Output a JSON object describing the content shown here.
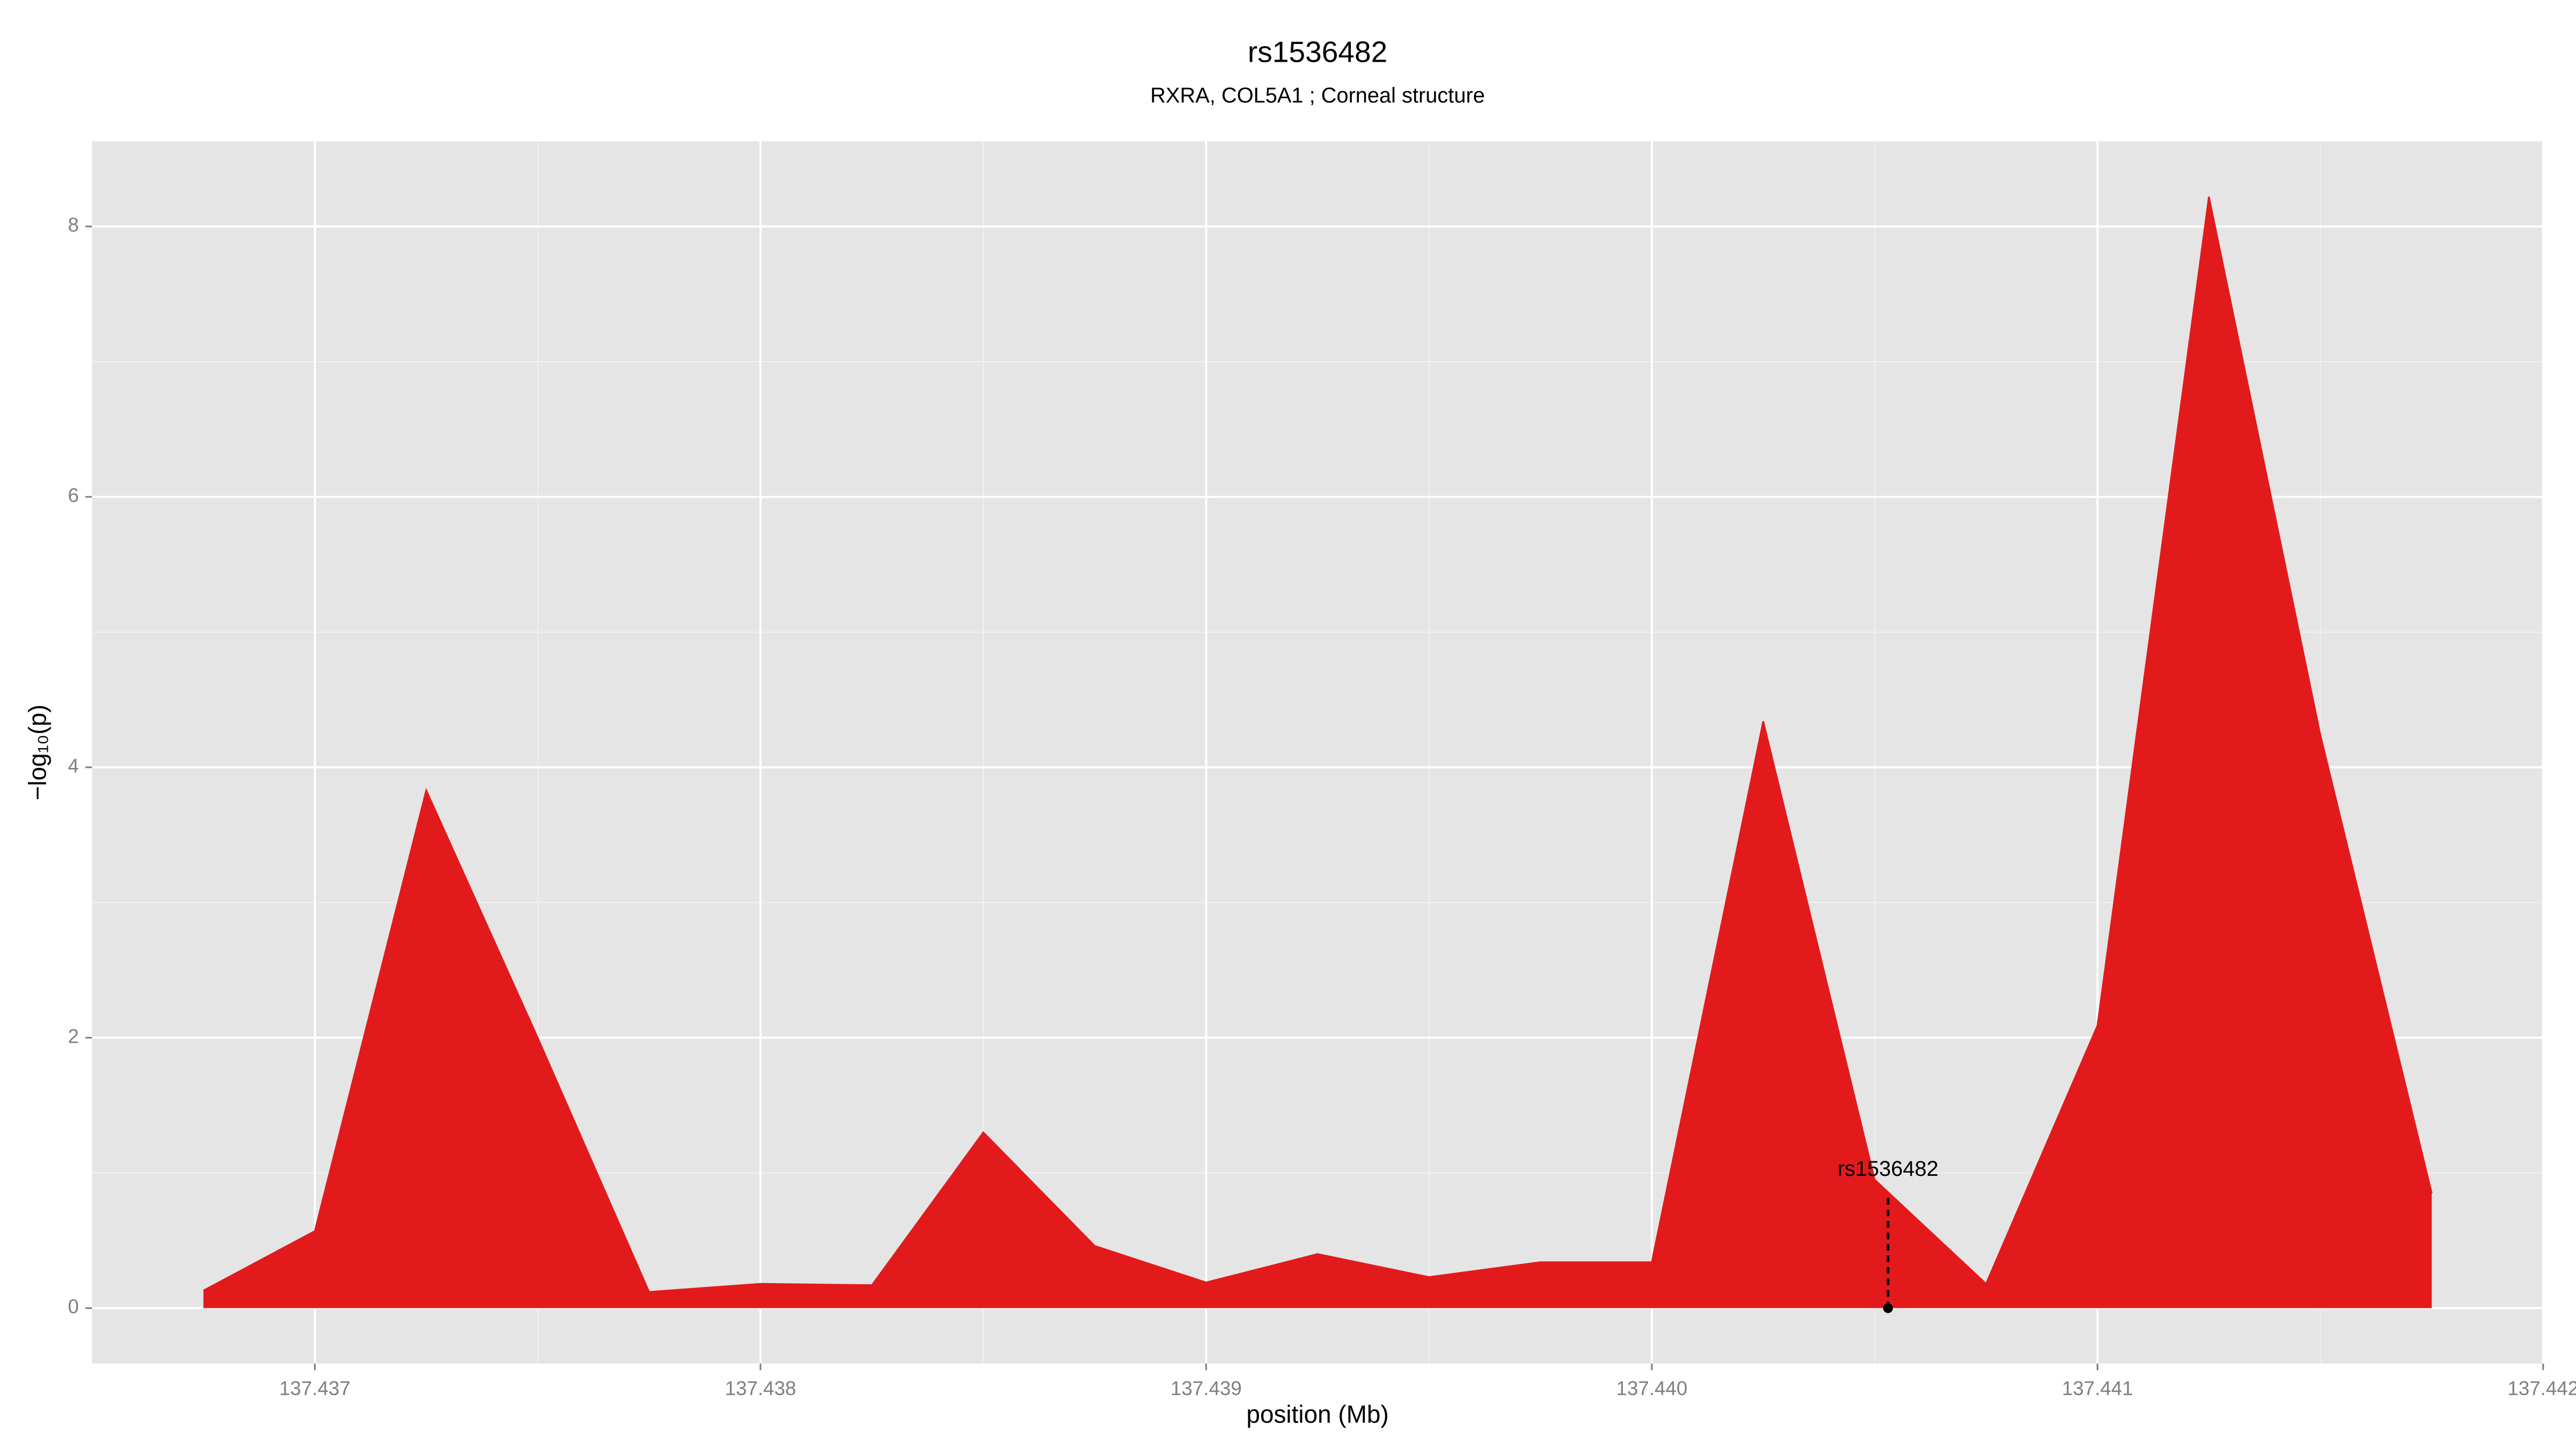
{
  "chart_data": {
    "type": "area",
    "title": "rs1536482",
    "subtitle": "RXRA, COL5A1 ; Corneal structure",
    "xlabel": "position (Mb)",
    "ylabel": "−log₁₀(p)",
    "x": [
      137.43675,
      137.437,
      137.43725,
      137.4375,
      137.43775,
      137.438,
      137.43825,
      137.4385,
      137.43875,
      137.439,
      137.43925,
      137.4395,
      137.43975,
      137.44,
      137.44025,
      137.4405,
      137.44075,
      137.441,
      137.44125,
      137.4415,
      137.44175
    ],
    "series": [
      {
        "color": "#e31a1c",
        "values": [
          0.13,
          0.57,
          3.83,
          2.0,
          0.12,
          0.18,
          0.17,
          1.3,
          0.46,
          0.19,
          0.4,
          0.23,
          0.34,
          0.34,
          4.34,
          0.95,
          0.18,
          2.09,
          8.22,
          4.24,
          0.85
        ]
      }
    ],
    "annotation": {
      "text": "rs1536482",
      "x": 137.44053,
      "y": 0.85
    },
    "xlim": [
      137.4365,
      137.442
    ],
    "ylim": [
      -0.41,
      8.63
    ],
    "xticks": [
      137.437,
      137.438,
      137.439,
      {
        "value": 137.44,
        "label": "137.440"
      },
      137.441,
      137.442
    ],
    "yticks": [
      0,
      2,
      4,
      6,
      8
    ],
    "grid": true
  }
}
